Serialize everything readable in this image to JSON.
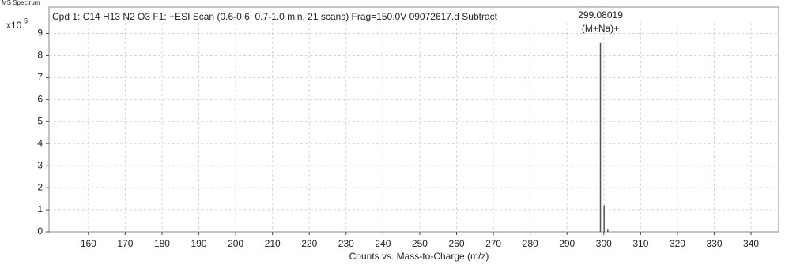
{
  "chart_data": {
    "type": "stick",
    "header": "MS Spectrum",
    "title": "Cpd 1: C14 H13 N2 O3 F1: +ESI Scan (0.6-0.6, 0.7-1.0 min, 21 scans) Frag=150.0V 09072617.d  Subtract",
    "x_label": "Counts vs. Mass-to-Charge (m/z)",
    "y_scale_base": "x10",
    "y_scale_exponent": "5",
    "x": [
      299.08019,
      300.0835,
      301.08
    ],
    "values": [
      8.6,
      1.2,
      0.1
    ],
    "color": "#555555",
    "annotations": [
      {
        "text": "(M+Na)+"
      }
    ],
    "xlim": [
      149.3,
      347.5
    ],
    "ylim": [
      0,
      10.2
    ],
    "xticks": [
      160,
      170,
      180,
      190,
      200,
      210,
      220,
      230,
      240,
      250,
      260,
      270,
      280,
      290,
      300,
      310,
      320,
      330,
      340
    ],
    "yticks": [
      0,
      1,
      2,
      3,
      4,
      5,
      6,
      7,
      8,
      9
    ],
    "grid": true
  }
}
